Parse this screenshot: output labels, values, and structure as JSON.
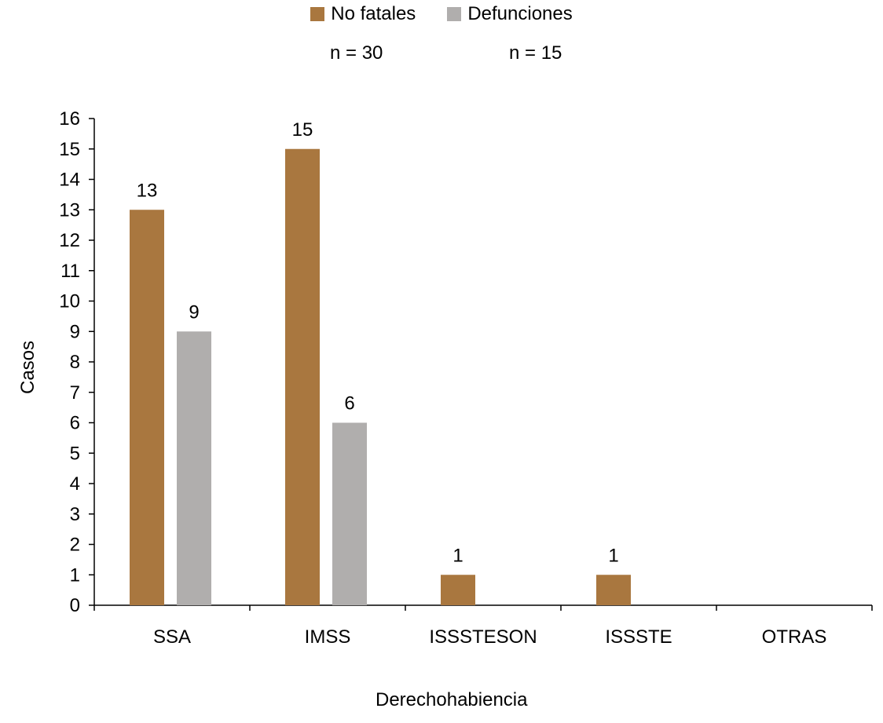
{
  "legend": {
    "items": [
      {
        "label": "No fatales",
        "color": "#A9773F"
      },
      {
        "label": "Defunciones",
        "color": "#B0AEAD"
      }
    ],
    "n_labels": [
      "n = 30",
      "n = 15"
    ]
  },
  "chart_data": {
    "type": "bar",
    "categories": [
      "SSA",
      "IMSS",
      "ISSSTESON",
      "ISSSTE",
      "OTRAS"
    ],
    "series": [
      {
        "name": "No fatales",
        "values": [
          13,
          15,
          1,
          1,
          0
        ],
        "color": "#A9773F"
      },
      {
        "name": "Defunciones",
        "values": [
          9,
          6,
          0,
          0,
          0
        ],
        "color": "#B0AEAD"
      }
    ],
    "xlabel": "Derechohabiencia",
    "ylabel": "Casos",
    "ylim": [
      0,
      16
    ],
    "yticks": [
      0,
      1,
      2,
      3,
      4,
      5,
      6,
      7,
      8,
      9,
      10,
      11,
      12,
      13,
      14,
      15,
      16
    ],
    "grid": false,
    "legend_position": "top-center"
  }
}
